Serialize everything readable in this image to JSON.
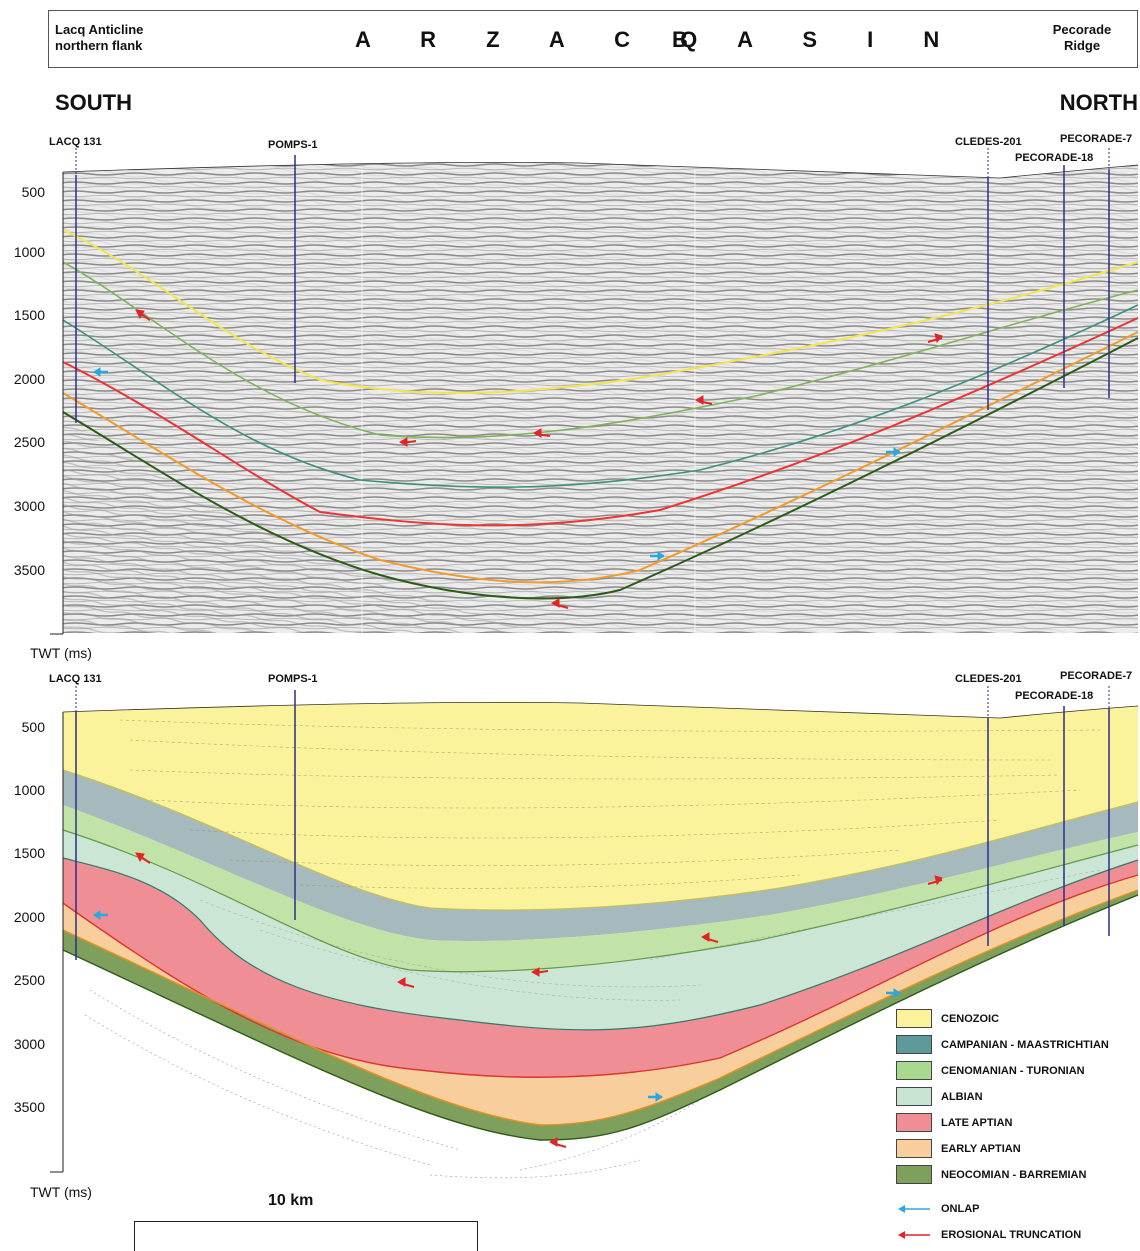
{
  "header": {
    "left_line1": "Lacq Anticline",
    "left_line2": "northern flank",
    "basin_title": "A R Z A C Q",
    "basin_title2": "B A S I N",
    "right_line1": "Pecorade",
    "right_line2": "Ridge"
  },
  "directions": {
    "south": "SOUTH",
    "north": "NORTH"
  },
  "wells": {
    "lacq": "LACQ 131",
    "pomps": "POMPS-1",
    "cledes": "CLEDES-201",
    "pecorade7": "PECORADE-7",
    "pecorade18": "PECORADE-18"
  },
  "axis": {
    "label": "TWT (ms)",
    "ticks": [
      "500",
      "1000",
      "1500",
      "2000",
      "2500",
      "3000",
      "3500"
    ]
  },
  "scale": {
    "label": "10 km"
  },
  "legend": {
    "units": [
      {
        "label": "CENOZOIC",
        "color": "#fbf39b"
      },
      {
        "label": "CAMPANIAN - MAASTRICHTIAN",
        "color": "#5e9a9a"
      },
      {
        "label": "CENOMANIAN - TURONIAN",
        "color": "#a9d98f"
      },
      {
        "label": "ALBIAN",
        "color": "#c9e4d2"
      },
      {
        "label": "LATE APTIAN",
        "color": "#ef8f95"
      },
      {
        "label": "EARLY APTIAN",
        "color": "#f8ce9c"
      },
      {
        "label": "NEOCOMIAN - BARREMIAN",
        "color": "#7f9f5d"
      }
    ],
    "onlap": "ONLAP",
    "truncation": "EROSIONAL TRUNCATION",
    "onlap_color": "#29a8df",
    "truncation_color": "#e42424"
  }
}
